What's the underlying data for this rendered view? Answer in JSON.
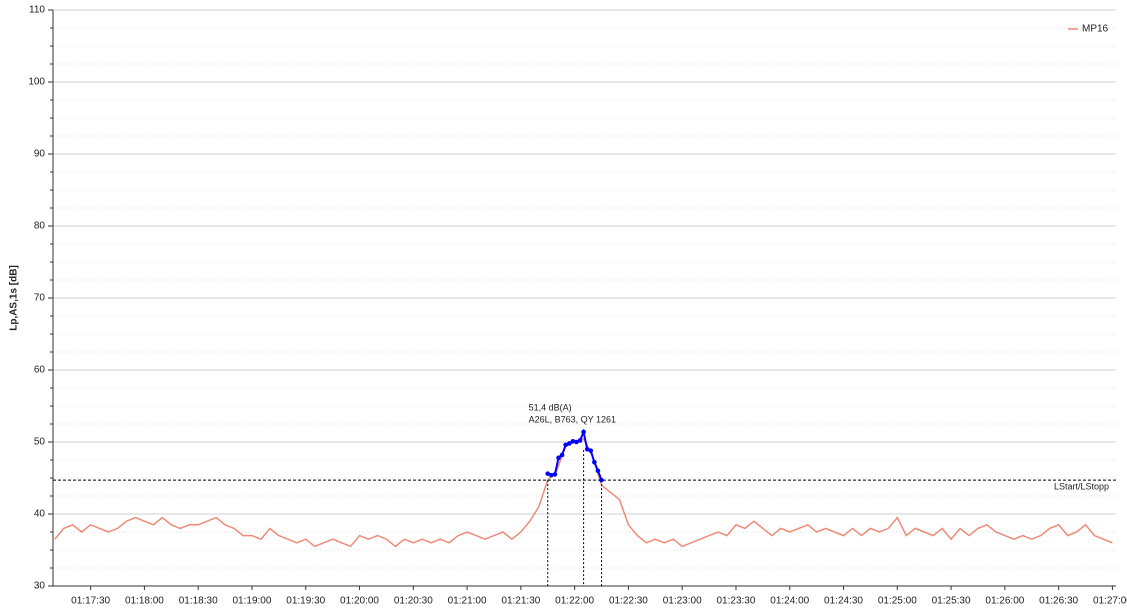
{
  "chart_data": {
    "type": "line",
    "y_label": "Lp,AS,1s [dB]",
    "ylim": [
      30,
      110
    ],
    "yticks": [
      30,
      40,
      50,
      60,
      70,
      80,
      90,
      100,
      110
    ],
    "xlim": [
      "01:17:09",
      "01:27:02"
    ],
    "xticks": [
      "01:17:30",
      "01:18:00",
      "01:18:30",
      "01:19:00",
      "01:19:30",
      "01:20:00",
      "01:20:30",
      "01:21:00",
      "01:21:30",
      "01:22:00",
      "01:22:30",
      "01:23:00",
      "01:23:30",
      "01:24:00",
      "01:24:30",
      "01:25:00",
      "01:25:30",
      "01:26:00",
      "01:26:30",
      "01:27:00"
    ],
    "grid": true,
    "legend": "top-right",
    "series": [
      {
        "name": "MP16",
        "color": "#ee8a76",
        "x": [
          "01:17:10",
          "01:17:15",
          "01:17:20",
          "01:17:25",
          "01:17:30",
          "01:17:35",
          "01:17:40",
          "01:17:45",
          "01:17:50",
          "01:17:55",
          "01:18:00",
          "01:18:05",
          "01:18:10",
          "01:18:15",
          "01:18:20",
          "01:18:25",
          "01:18:30",
          "01:18:35",
          "01:18:40",
          "01:18:45",
          "01:18:50",
          "01:18:55",
          "01:19:00",
          "01:19:05",
          "01:19:10",
          "01:19:15",
          "01:19:20",
          "01:19:25",
          "01:19:30",
          "01:19:35",
          "01:19:40",
          "01:19:45",
          "01:19:50",
          "01:19:55",
          "01:20:00",
          "01:20:05",
          "01:20:10",
          "01:20:15",
          "01:20:20",
          "01:20:25",
          "01:20:30",
          "01:20:35",
          "01:20:40",
          "01:20:45",
          "01:20:50",
          "01:20:55",
          "01:21:00",
          "01:21:05",
          "01:21:10",
          "01:21:15",
          "01:21:20",
          "01:21:25",
          "01:21:30",
          "01:21:35",
          "01:21:40",
          "01:21:45",
          "01:21:50",
          "01:21:55",
          "01:22:00",
          "01:22:05",
          "01:22:10",
          "01:22:15",
          "01:22:20",
          "01:22:25",
          "01:22:30",
          "01:22:35",
          "01:22:40",
          "01:22:45",
          "01:22:50",
          "01:22:55",
          "01:23:00",
          "01:23:05",
          "01:23:10",
          "01:23:15",
          "01:23:20",
          "01:23:25",
          "01:23:30",
          "01:23:35",
          "01:23:40",
          "01:23:45",
          "01:23:50",
          "01:23:55",
          "01:24:00",
          "01:24:05",
          "01:24:10",
          "01:24:15",
          "01:24:20",
          "01:24:25",
          "01:24:30",
          "01:24:35",
          "01:24:40",
          "01:24:45",
          "01:24:50",
          "01:24:55",
          "01:25:00",
          "01:25:05",
          "01:25:10",
          "01:25:15",
          "01:25:20",
          "01:25:25",
          "01:25:30",
          "01:25:35",
          "01:25:40",
          "01:25:45",
          "01:25:50",
          "01:25:55",
          "01:26:00",
          "01:26:05",
          "01:26:10",
          "01:26:15",
          "01:26:20",
          "01:26:25",
          "01:26:30",
          "01:26:35",
          "01:26:40",
          "01:26:45",
          "01:26:50",
          "01:26:55",
          "01:27:00"
        ],
        "values": [
          36.5,
          38,
          38.5,
          37.5,
          38.5,
          38,
          37.5,
          38,
          39,
          39.5,
          39,
          38.5,
          39.5,
          38.5,
          38,
          38.5,
          38.5,
          39,
          39.5,
          38.5,
          38,
          37,
          37,
          36.5,
          38,
          37,
          36.5,
          36,
          36.5,
          35.5,
          36,
          36.5,
          36,
          35.5,
          37,
          36.5,
          37,
          36.5,
          35.5,
          36.5,
          36,
          36.5,
          36,
          36.5,
          36,
          37,
          37.5,
          37,
          36.5,
          37,
          37.5,
          36.5,
          37.5,
          39,
          41,
          44.7,
          46,
          49.5,
          50,
          50.5,
          48,
          44,
          43,
          42,
          38.5,
          37,
          36,
          36.5,
          36,
          36.5,
          35.5,
          36,
          36.5,
          37,
          37.5,
          37,
          38.5,
          38,
          39,
          38,
          37,
          38,
          37.5,
          38,
          38.5,
          37.5,
          38,
          37.5,
          37,
          38,
          37,
          38,
          37.5,
          38,
          39.5,
          37,
          38,
          37.5,
          37,
          38,
          36.5,
          38,
          37,
          38,
          38.5,
          37.5,
          37,
          36.5,
          37,
          36.5,
          37,
          38,
          38.5,
          37,
          37.5,
          38.5,
          37,
          36.5,
          36
        ]
      }
    ],
    "highlight": {
      "color": "#0000ff",
      "x": [
        "01:21:45",
        "01:21:47",
        "01:21:49",
        "01:21:51",
        "01:21:53",
        "01:21:55",
        "01:21:57",
        "01:21:59",
        "01:22:01",
        "01:22:03",
        "01:22:05",
        "01:22:07",
        "01:22:09",
        "01:22:11",
        "01:22:13",
        "01:22:15"
      ],
      "values": [
        45.6,
        45.4,
        45.5,
        47.8,
        48.2,
        49.6,
        49.8,
        50.1,
        50,
        50.2,
        51.4,
        49,
        48.8,
        47.2,
        46,
        44.7
      ]
    },
    "event_lines": [
      "01:21:45",
      "01:22:05",
      "01:22:15"
    ],
    "threshold": {
      "value": 44.7,
      "label": "LStart/LStopp"
    },
    "annotations": [
      "51,4 dB(A)",
      "A26L, B763, QY 1261"
    ]
  }
}
